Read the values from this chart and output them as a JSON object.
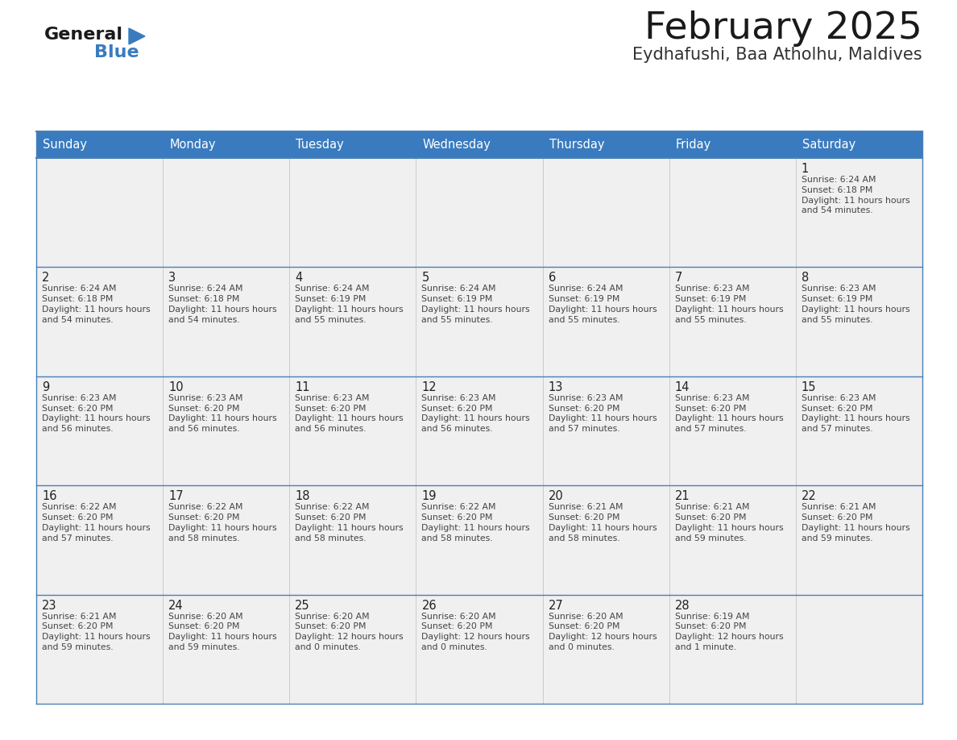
{
  "title": "February 2025",
  "subtitle": "Eydhafushi, Baa Atholhu, Maldives",
  "header_color": "#3a7bbf",
  "header_text_color": "#ffffff",
  "cell_bg_color": "#f0f0f0",
  "border_color": "#2a5fa5",
  "row_line_color": "#4a7fb5",
  "text_color": "#444444",
  "day_num_color": "#222222",
  "days_of_week": [
    "Sunday",
    "Monday",
    "Tuesday",
    "Wednesday",
    "Thursday",
    "Friday",
    "Saturday"
  ],
  "calendar_data": [
    [
      null,
      null,
      null,
      null,
      null,
      null,
      {
        "day": 1,
        "sunrise": "6:24 AM",
        "sunset": "6:18 PM",
        "daylight": "11 hours and 54 minutes."
      }
    ],
    [
      {
        "day": 2,
        "sunrise": "6:24 AM",
        "sunset": "6:18 PM",
        "daylight": "11 hours and 54 minutes."
      },
      {
        "day": 3,
        "sunrise": "6:24 AM",
        "sunset": "6:18 PM",
        "daylight": "11 hours and 54 minutes."
      },
      {
        "day": 4,
        "sunrise": "6:24 AM",
        "sunset": "6:19 PM",
        "daylight": "11 hours and 55 minutes."
      },
      {
        "day": 5,
        "sunrise": "6:24 AM",
        "sunset": "6:19 PM",
        "daylight": "11 hours and 55 minutes."
      },
      {
        "day": 6,
        "sunrise": "6:24 AM",
        "sunset": "6:19 PM",
        "daylight": "11 hours and 55 minutes."
      },
      {
        "day": 7,
        "sunrise": "6:23 AM",
        "sunset": "6:19 PM",
        "daylight": "11 hours and 55 minutes."
      },
      {
        "day": 8,
        "sunrise": "6:23 AM",
        "sunset": "6:19 PM",
        "daylight": "11 hours and 55 minutes."
      }
    ],
    [
      {
        "day": 9,
        "sunrise": "6:23 AM",
        "sunset": "6:20 PM",
        "daylight": "11 hours and 56 minutes."
      },
      {
        "day": 10,
        "sunrise": "6:23 AM",
        "sunset": "6:20 PM",
        "daylight": "11 hours and 56 minutes."
      },
      {
        "day": 11,
        "sunrise": "6:23 AM",
        "sunset": "6:20 PM",
        "daylight": "11 hours and 56 minutes."
      },
      {
        "day": 12,
        "sunrise": "6:23 AM",
        "sunset": "6:20 PM",
        "daylight": "11 hours and 56 minutes."
      },
      {
        "day": 13,
        "sunrise": "6:23 AM",
        "sunset": "6:20 PM",
        "daylight": "11 hours and 57 minutes."
      },
      {
        "day": 14,
        "sunrise": "6:23 AM",
        "sunset": "6:20 PM",
        "daylight": "11 hours and 57 minutes."
      },
      {
        "day": 15,
        "sunrise": "6:23 AM",
        "sunset": "6:20 PM",
        "daylight": "11 hours and 57 minutes."
      }
    ],
    [
      {
        "day": 16,
        "sunrise": "6:22 AM",
        "sunset": "6:20 PM",
        "daylight": "11 hours and 57 minutes."
      },
      {
        "day": 17,
        "sunrise": "6:22 AM",
        "sunset": "6:20 PM",
        "daylight": "11 hours and 58 minutes."
      },
      {
        "day": 18,
        "sunrise": "6:22 AM",
        "sunset": "6:20 PM",
        "daylight": "11 hours and 58 minutes."
      },
      {
        "day": 19,
        "sunrise": "6:22 AM",
        "sunset": "6:20 PM",
        "daylight": "11 hours and 58 minutes."
      },
      {
        "day": 20,
        "sunrise": "6:21 AM",
        "sunset": "6:20 PM",
        "daylight": "11 hours and 58 minutes."
      },
      {
        "day": 21,
        "sunrise": "6:21 AM",
        "sunset": "6:20 PM",
        "daylight": "11 hours and 59 minutes."
      },
      {
        "day": 22,
        "sunrise": "6:21 AM",
        "sunset": "6:20 PM",
        "daylight": "11 hours and 59 minutes."
      }
    ],
    [
      {
        "day": 23,
        "sunrise": "6:21 AM",
        "sunset": "6:20 PM",
        "daylight": "11 hours and 59 minutes."
      },
      {
        "day": 24,
        "sunrise": "6:20 AM",
        "sunset": "6:20 PM",
        "daylight": "11 hours and 59 minutes."
      },
      {
        "day": 25,
        "sunrise": "6:20 AM",
        "sunset": "6:20 PM",
        "daylight": "12 hours and 0 minutes."
      },
      {
        "day": 26,
        "sunrise": "6:20 AM",
        "sunset": "6:20 PM",
        "daylight": "12 hours and 0 minutes."
      },
      {
        "day": 27,
        "sunrise": "6:20 AM",
        "sunset": "6:20 PM",
        "daylight": "12 hours and 0 minutes."
      },
      {
        "day": 28,
        "sunrise": "6:19 AM",
        "sunset": "6:20 PM",
        "daylight": "12 hours and 1 minute."
      },
      null
    ]
  ],
  "logo_text_general": "General",
  "logo_text_blue": "Blue",
  "logo_color_general": "#1a1a1a",
  "logo_color_blue": "#3a7bbf",
  "logo_triangle_color": "#3a7bbf",
  "fig_width": 11.88,
  "fig_height": 9.18,
  "dpi": 100
}
